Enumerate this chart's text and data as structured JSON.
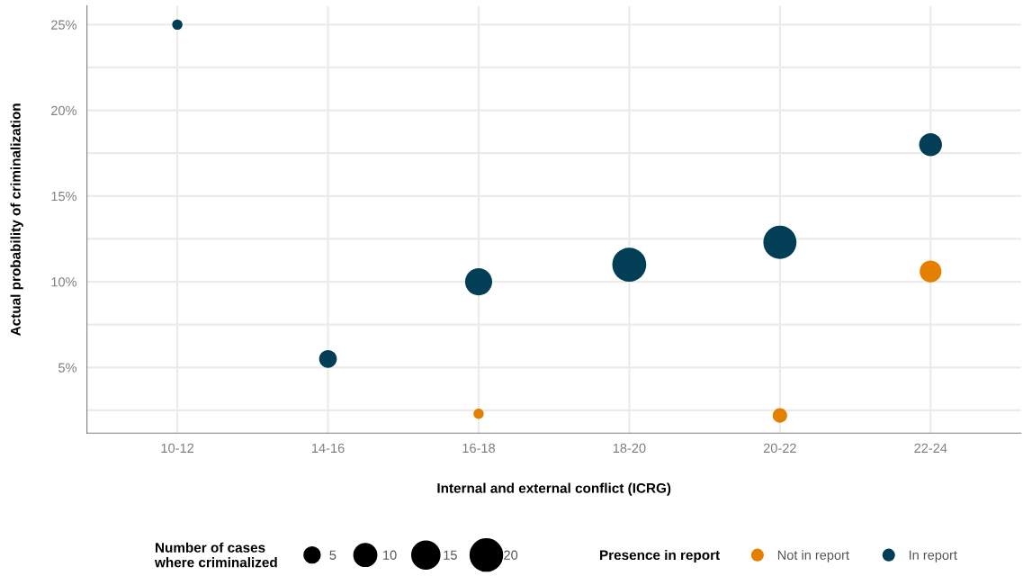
{
  "chart_data": {
    "type": "bubble",
    "xlabel": "Internal and external conflict (ICRG)",
    "ylabel": "Actual probability of criminalization",
    "legend_title": "Presence in report",
    "annotations": [
      "Number of cases\nwhere criminalized"
    ],
    "categories": [
      "10-12",
      "14-16",
      "16-18",
      "18-20",
      "20-22",
      "22-24"
    ],
    "series": [
      {
        "name": "Not in report",
        "color": "#e57f00",
        "values": [
          null,
          null,
          2.3,
          null,
          2.2,
          10.6
        ],
        "sizes": [
          null,
          null,
          2,
          null,
          4,
          9
        ]
      },
      {
        "name": "In report",
        "color": "#023f56",
        "values": [
          25,
          5.5,
          10,
          11,
          12.3,
          18
        ],
        "sizes": [
          2,
          6,
          14,
          22,
          21,
          10
        ]
      }
    ],
    "size_legend": [
      5,
      10,
      15,
      20
    ],
    "ylim": [
      1.17,
      26.1
    ],
    "yticks": [
      {
        "value": 5,
        "label": "5%"
      },
      {
        "value": 10,
        "label": "10%"
      },
      {
        "value": 15,
        "label": "15%"
      },
      {
        "value": 20,
        "label": "20%"
      },
      {
        "value": 25,
        "label": "25%"
      }
    ],
    "grid": true,
    "legend": "bottom"
  }
}
